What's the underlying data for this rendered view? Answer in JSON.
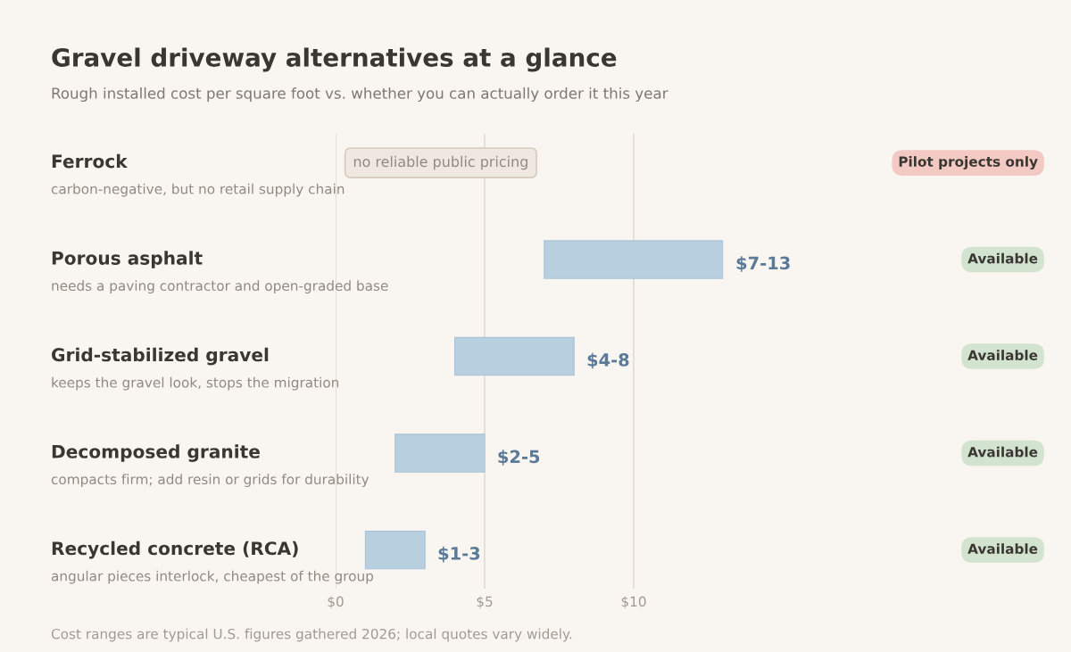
{
  "chart_data": {
    "type": "bar",
    "orientation": "horizontal",
    "title": "Gravel driveway alternatives at a glance",
    "subtitle": "Rough installed cost per square foot vs. whether you can actually order it this year",
    "categories": [
      "Ferrock",
      "Porous asphalt",
      "Grid-stabilized gravel",
      "Decomposed granite",
      "Recycled concrete (RCA)"
    ],
    "base": [
      null,
      7,
      4,
      2,
      1
    ],
    "values": [
      null,
      6,
      4,
      3,
      2
    ],
    "value_labels": [
      null,
      "$7-13",
      "$4-8",
      "$2-5",
      "$1-3"
    ],
    "color": "#b8cfdf",
    "xlim": [
      0,
      13
    ],
    "xticks": [
      {
        "value": 0,
        "label": "$0"
      },
      {
        "value": 5,
        "label": "$5"
      },
      {
        "value": 10,
        "label": "$10"
      }
    ],
    "grid": "x",
    "annotations": [
      "carbon-negative, but no retail supply chain",
      "needs a paving contractor and open-graded base",
      "keeps the gravel look, stops the migration",
      "compacts firm; add resin or grids for durability",
      "angular pieces interlock, cheapest of the group",
      "no reliable public pricing",
      "Pilot projects only",
      "Available",
      "Available",
      "Available",
      "Available",
      "Cost ranges are typical U.S. figures gathered 2026; local quotes vary widely."
    ]
  }
}
